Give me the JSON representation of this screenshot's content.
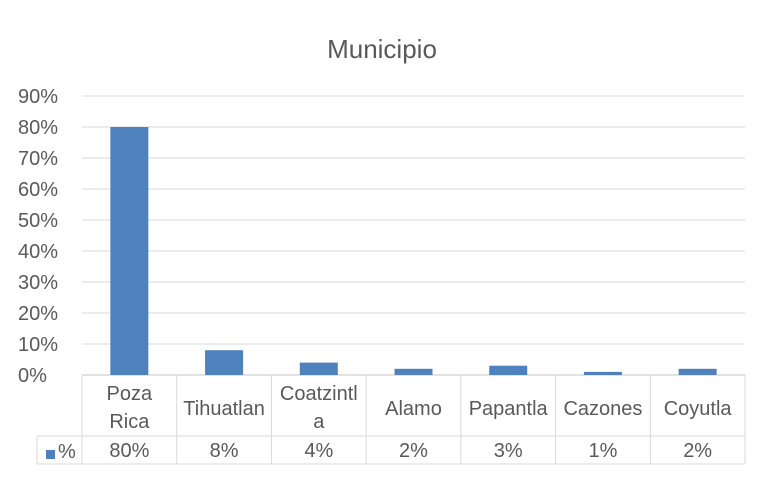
{
  "chart_data": {
    "type": "bar",
    "title": "Municipio",
    "categories": [
      [
        "Poza",
        "Rica"
      ],
      [
        "Tihuatlan"
      ],
      [
        "Coatzintl",
        "a"
      ],
      [
        "Alamo"
      ],
      [
        "Papantla"
      ],
      [
        "Cazones"
      ],
      [
        "Coyutla"
      ]
    ],
    "series": [
      {
        "name": "%",
        "values": [
          0.8,
          0.08,
          0.04,
          0.02,
          0.03,
          0.01,
          0.02
        ],
        "labels": [
          "80%",
          "8%",
          "4%",
          "2%",
          "3%",
          "1%",
          "2%"
        ],
        "color": "#4f81bd"
      }
    ],
    "ylim": [
      0,
      0.9
    ],
    "yticks": [
      {
        "value": 0.9,
        "label": "90%"
      },
      {
        "value": 0.8,
        "label": "80%"
      },
      {
        "value": 0.7,
        "label": "70%"
      },
      {
        "value": 0.6,
        "label": "60%"
      },
      {
        "value": 0.5,
        "label": "50%"
      },
      {
        "value": 0.4,
        "label": "40%"
      },
      {
        "value": 0.3,
        "label": "30%"
      },
      {
        "value": 0.2,
        "label": "20%"
      },
      {
        "value": 0.1,
        "label": "10%"
      },
      {
        "value": 0.0,
        "label": "0%"
      }
    ],
    "grid": true,
    "data_table": true
  },
  "colors": {
    "bar": "#4f81bd",
    "grid": "#d9d9d9",
    "text": "#595959",
    "border": "#d9d9d9"
  }
}
